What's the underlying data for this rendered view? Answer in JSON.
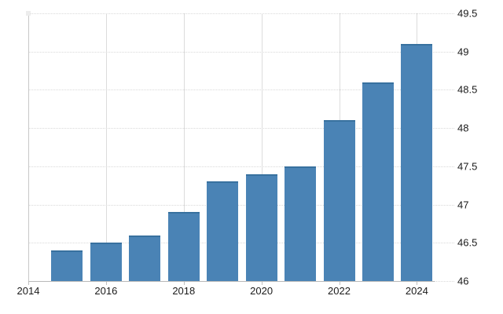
{
  "chart_data": {
    "type": "bar",
    "title": "",
    "xlabel": "",
    "ylabel": "",
    "categories": [
      "2015",
      "2016",
      "2017",
      "2018",
      "2019",
      "2020",
      "2021",
      "2022",
      "2023",
      "2024"
    ],
    "values": [
      46.4,
      46.5,
      46.6,
      46.9,
      47.3,
      47.4,
      47.5,
      48.1,
      48.6,
      49.1
    ],
    "series_name": "",
    "ylim": [
      46,
      49.5
    ],
    "y_axis_side": "right",
    "y_ticks": [
      46,
      46.5,
      47,
      47.5,
      48,
      48.5,
      49,
      49.5
    ],
    "x_tick_years": [
      2014,
      2016,
      2018,
      2020,
      2022,
      2024
    ],
    "x_tick_labels": [
      "2014",
      "2016",
      "2018",
      "2020",
      "2022",
      "2024"
    ],
    "grid": true,
    "legend": false,
    "colors": {
      "bar_fill": "#4a83b5",
      "bar_top_border": "#38719f",
      "grid_horizontal": "#d9d9d9",
      "grid_vertical": "#dcdcdc",
      "axis_line": "#b8b8b8",
      "tick_text": "#1a1a1a",
      "background": "#ffffff"
    }
  }
}
